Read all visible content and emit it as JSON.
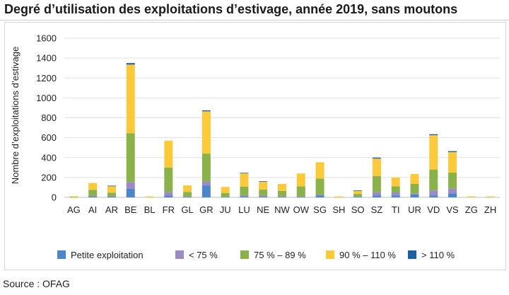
{
  "source": "Source : OFAG",
  "chart_data": {
    "type": "bar",
    "stacked": true,
    "title": "Degré d’utilisation des exploitations d’estivage, année 2019, sans moutons",
    "xlabel": "",
    "ylabel": "Nombre d’exploitations d’estivage",
    "ylim": [
      0,
      1600
    ],
    "yticks": [
      0,
      200,
      400,
      600,
      800,
      1000,
      1200,
      1400,
      1600
    ],
    "grid": true,
    "legend_position": "bottom",
    "categories": [
      "AG",
      "AI",
      "AR",
      "BE",
      "BL",
      "FR",
      "GL",
      "GR",
      "JU",
      "LU",
      "NE",
      "NW",
      "OW",
      "SG",
      "SH",
      "SO",
      "SZ",
      "TI",
      "UR",
      "VD",
      "VS",
      "ZG",
      "ZH"
    ],
    "series": [
      {
        "name": "Petite exploitation",
        "color": "#4a86c8",
        "values": [
          0,
          10,
          8,
          85,
          0,
          20,
          5,
          120,
          5,
          12,
          8,
          5,
          5,
          18,
          0,
          5,
          20,
          20,
          30,
          20,
          40,
          0,
          0
        ]
      },
      {
        "name": "< 75 %",
        "color": "#9b8ac4",
        "values": [
          0,
          5,
          5,
          70,
          0,
          35,
          5,
          40,
          0,
          10,
          10,
          5,
          5,
          10,
          0,
          5,
          35,
          30,
          10,
          50,
          50,
          0,
          0
        ]
      },
      {
        "name": "75 % – 89 %",
        "color": "#8bb24a",
        "values": [
          2,
          60,
          35,
          490,
          0,
          245,
          45,
          280,
          40,
          85,
          60,
          55,
          100,
          160,
          0,
          25,
          160,
          60,
          95,
          210,
          160,
          0,
          0
        ]
      },
      {
        "name": "90 % – 110 %",
        "color": "#fcc93a",
        "values": [
          10,
          70,
          65,
          690,
          10,
          270,
          65,
          425,
          60,
          135,
          80,
          70,
          130,
          165,
          10,
          30,
          175,
          90,
          100,
          345,
          205,
          10,
          10
        ]
      },
      {
        "name": "> 110 %",
        "color": "#1f5fa8",
        "values": [
          0,
          0,
          5,
          15,
          0,
          0,
          0,
          10,
          0,
          5,
          5,
          0,
          0,
          0,
          0,
          5,
          10,
          0,
          0,
          10,
          10,
          0,
          0
        ]
      }
    ]
  }
}
